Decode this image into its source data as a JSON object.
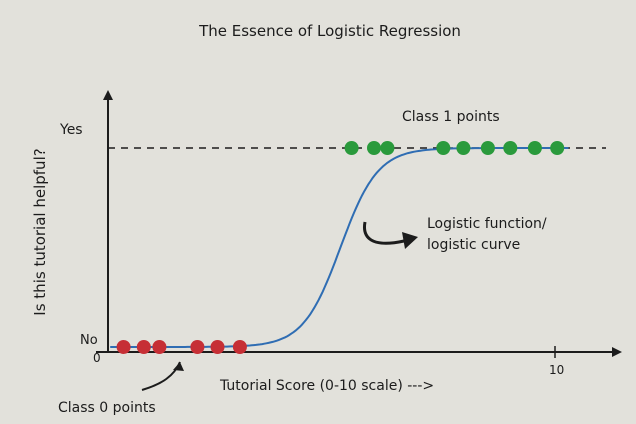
{
  "diagram": {
    "title": "The Essence of Logistic Regression",
    "y_axis_label": "Is this tutorial helpful?",
    "x_axis_label": "Tutorial Score (0-10 scale) --->",
    "y_tick_yes": "Yes",
    "y_tick_no": "No",
    "origin_label": "0",
    "x_tick_10": "10",
    "class1_label": "Class 1 points",
    "class0_label": "Class 0 points",
    "curve_label_line1": "Logistic function/",
    "curve_label_line2": "logistic curve",
    "colors": {
      "background": "#e2e1db",
      "axis": "#1c1c1c",
      "curve": "#2f6db3",
      "class0": "#c62f35",
      "class1": "#2a9a3c"
    }
  },
  "chart_data": {
    "type": "scatter",
    "x_range": [
      0,
      10
    ],
    "y_range": [
      0,
      1
    ],
    "class_0_points_x": [
      0.35,
      0.8,
      1.15,
      2.0,
      2.45,
      2.95
    ],
    "class_1_points_x": [
      5.45,
      5.95,
      6.25,
      7.5,
      7.95,
      8.5,
      9.0,
      9.55,
      10.05
    ],
    "curve": {
      "function": "logistic",
      "midpoint": 5.2,
      "steepness": 2.4
    }
  }
}
